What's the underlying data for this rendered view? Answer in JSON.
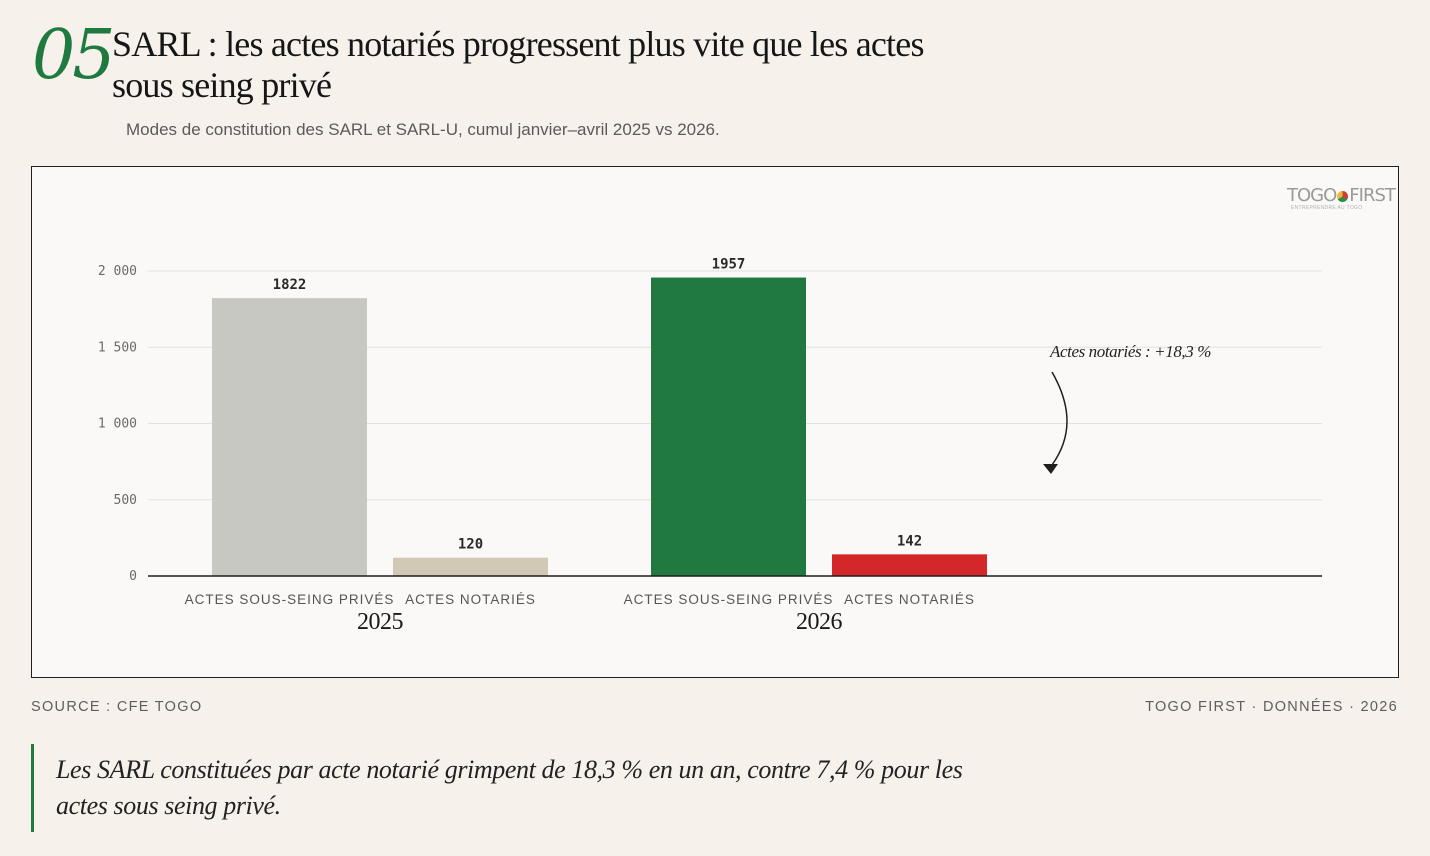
{
  "header": {
    "number": "05",
    "title": "SARL : les actes notariés progressent plus vite que les actes sous seing privé",
    "subtitle": "Modes de constitution des SARL et SARL-U, cumul janvier–avril 2025 vs 2026."
  },
  "logo": {
    "text_left": "TOGO",
    "text_right": "FIRST",
    "tagline": "ENTREPRENDRE AU TOGO"
  },
  "footer": {
    "source": "SOURCE : CFE TOGO",
    "credit": "TOGO FIRST · DONNÉES · 2026"
  },
  "quote": "Les SARL constituées par acte notarié grimpent de 18,3 % en un an, contre 7,4 % pour les actes sous seing privé.",
  "chart_data": {
    "type": "bar",
    "groups": [
      "2025",
      "2026"
    ],
    "categories": [
      "ACTES SOUS-SEING PRIVÉS",
      "ACTES NOTARIÉS"
    ],
    "series": [
      {
        "group": "2025",
        "values": [
          1822,
          120
        ],
        "colors": [
          "#c8c8c3",
          "#d1c8b6"
        ]
      },
      {
        "group": "2026",
        "values": [
          1957,
          142
        ],
        "colors": [
          "#207a3f",
          "#d3272a"
        ]
      }
    ],
    "data_labels": [
      [
        "1822",
        "120"
      ],
      [
        "1957",
        "142"
      ]
    ],
    "yticks": [
      0,
      500,
      1000,
      1500,
      2000
    ],
    "ytick_labels": [
      "0",
      "500",
      "1 000",
      "1 500",
      "2 000"
    ],
    "ylim": [
      0,
      2000
    ],
    "grid": true,
    "annotation": "Actes notariés : +18,3 %"
  }
}
